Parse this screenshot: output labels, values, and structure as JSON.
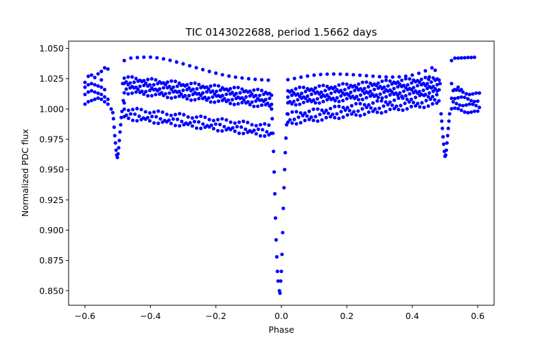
{
  "chart_data": {
    "type": "scatter",
    "title": "TIC 0143022688, period 1.5662 days",
    "xlabel": "Phase",
    "ylabel": "Normalized PDC flux",
    "xlim": [
      -0.65,
      0.65
    ],
    "ylim": [
      0.838,
      1.056
    ],
    "xticks": [
      -0.6,
      -0.4,
      -0.2,
      0.0,
      0.2,
      0.4,
      0.6
    ],
    "xtick_labels": [
      "−0.6",
      "−0.4",
      "−0.2",
      "0.0",
      "0.2",
      "0.4",
      "0.6"
    ],
    "yticks": [
      0.85,
      0.875,
      0.9,
      0.925,
      0.95,
      0.975,
      1.0,
      1.025,
      1.05
    ],
    "ytick_labels": [
      "0.850",
      "0.875",
      "0.900",
      "0.925",
      "0.950",
      "0.975",
      "1.000",
      "1.025",
      "1.050"
    ],
    "grid": false,
    "marker_color": "#0000ff",
    "series": [
      {
        "points": [
          [
            -0.6,
            1.004
          ],
          [
            -0.59,
            1.006
          ],
          [
            -0.58,
            1.007
          ],
          [
            -0.57,
            1.008
          ],
          [
            -0.56,
            1.009
          ],
          [
            -0.55,
            1.008
          ],
          [
            -0.54,
            1.006
          ],
          [
            -0.53,
            1.004
          ],
          [
            -0.52,
            1.0
          ],
          [
            -0.6,
            1.012
          ],
          [
            -0.59,
            1.014
          ],
          [
            -0.58,
            1.015
          ],
          [
            -0.57,
            1.014
          ],
          [
            -0.56,
            1.013
          ],
          [
            -0.55,
            1.012
          ],
          [
            -0.54,
            1.01
          ],
          [
            -0.53,
            1.008
          ],
          [
            -0.6,
            1.018
          ],
          [
            -0.59,
            1.02
          ],
          [
            -0.58,
            1.021
          ],
          [
            -0.57,
            1.02
          ],
          [
            -0.56,
            1.019
          ],
          [
            -0.55,
            1.018
          ],
          [
            -0.54,
            1.016
          ],
          [
            -0.6,
            1.022
          ],
          [
            -0.59,
            1.027
          ],
          [
            -0.58,
            1.028
          ],
          [
            -0.57,
            1.026
          ],
          [
            -0.56,
            1.029
          ],
          [
            -0.55,
            1.031
          ],
          [
            -0.54,
            1.034
          ],
          [
            -0.53,
            1.033
          ],
          [
            -0.55,
            1.024
          ],
          [
            -0.515,
            0.997
          ],
          [
            -0.513,
            0.992
          ],
          [
            -0.511,
            0.985
          ],
          [
            -0.509,
            0.978
          ],
          [
            -0.507,
            0.972
          ],
          [
            -0.505,
            0.966
          ],
          [
            -0.503,
            0.962
          ],
          [
            -0.501,
            0.96
          ],
          [
            -0.499,
            0.963
          ],
          [
            -0.497,
            0.968
          ],
          [
            -0.495,
            0.974
          ],
          [
            -0.493,
            0.981
          ],
          [
            -0.491,
            0.987
          ],
          [
            -0.489,
            0.993
          ],
          [
            -0.487,
            0.998
          ],
          [
            -0.483,
            1.007
          ],
          [
            -0.48,
            1.005
          ],
          [
            -0.485,
            1.021
          ],
          [
            -0.48,
            1.04
          ],
          [
            -0.46,
            1.042
          ],
          [
            -0.44,
            1.0425
          ],
          [
            -0.42,
            1.0428
          ],
          [
            -0.4,
            1.0428
          ],
          [
            -0.38,
            1.0423
          ],
          [
            -0.36,
            1.0414
          ],
          [
            -0.34,
            1.0402
          ],
          [
            -0.32,
            1.0388
          ],
          [
            -0.3,
            1.0373
          ],
          [
            -0.28,
            1.0357
          ],
          [
            -0.26,
            1.0341
          ],
          [
            -0.24,
            1.0325
          ],
          [
            -0.22,
            1.031
          ],
          [
            -0.2,
            1.0296
          ],
          [
            -0.18,
            1.0283
          ],
          [
            -0.16,
            1.0272
          ],
          [
            -0.14,
            1.0263
          ],
          [
            -0.12,
            1.0256
          ],
          [
            -0.1,
            1.025
          ],
          [
            -0.08,
            1.0245
          ],
          [
            -0.06,
            1.0241
          ],
          [
            -0.04,
            1.0238
          ],
          [
            -0.03,
            1.0
          ],
          [
            -0.028,
            0.992
          ],
          [
            -0.026,
            0.98
          ],
          [
            -0.024,
            0.965
          ],
          [
            -0.022,
            0.948
          ],
          [
            -0.02,
            0.93
          ],
          [
            -0.018,
            0.91
          ],
          [
            -0.016,
            0.892
          ],
          [
            -0.014,
            0.878
          ],
          [
            -0.012,
            0.866
          ],
          [
            -0.01,
            0.858
          ],
          [
            -0.006,
            0.85
          ],
          [
            -0.004,
            0.848
          ],
          [
            -0.002,
            0.858
          ],
          [
            0.0,
            0.866
          ],
          [
            0.002,
            0.88
          ],
          [
            0.004,
            0.898
          ],
          [
            0.006,
            0.918
          ],
          [
            0.008,
            0.935
          ],
          [
            0.01,
            0.95
          ],
          [
            0.012,
            0.964
          ],
          [
            0.014,
            0.976
          ],
          [
            0.016,
            0.987
          ],
          [
            0.018,
            0.996
          ],
          [
            0.02,
            1.0242
          ],
          [
            0.04,
            1.0252
          ],
          [
            0.06,
            1.0263
          ],
          [
            0.08,
            1.0272
          ],
          [
            0.1,
            1.028
          ],
          [
            0.12,
            1.0285
          ],
          [
            0.14,
            1.0288
          ],
          [
            0.16,
            1.0289
          ],
          [
            0.18,
            1.0288
          ],
          [
            0.2,
            1.0286
          ],
          [
            0.22,
            1.0283
          ],
          [
            0.24,
            1.0279
          ],
          [
            0.26,
            1.0275
          ],
          [
            0.28,
            1.0271
          ],
          [
            0.3,
            1.0267
          ],
          [
            0.32,
            1.0265
          ],
          [
            0.34,
            1.0264
          ],
          [
            0.36,
            1.0266
          ],
          [
            0.38,
            1.0271
          ],
          [
            0.4,
            1.028
          ],
          [
            0.42,
            1.0295
          ],
          [
            0.44,
            1.0315
          ],
          [
            0.46,
            1.034
          ],
          [
            0.47,
            1.032
          ],
          [
            0.45,
            1.0245
          ],
          [
            0.485,
            1.021
          ],
          [
            0.488,
            0.996
          ],
          [
            0.49,
            0.99
          ],
          [
            0.492,
            0.984
          ],
          [
            0.494,
            0.977
          ],
          [
            0.496,
            0.971
          ],
          [
            0.498,
            0.965
          ],
          [
            0.5,
            0.961
          ],
          [
            0.502,
            0.962
          ],
          [
            0.504,
            0.966
          ],
          [
            0.506,
            0.972
          ],
          [
            0.508,
            0.978
          ],
          [
            0.51,
            0.984
          ],
          [
            0.512,
            0.99
          ],
          [
            0.514,
            0.996
          ],
          [
            0.52,
            1.04
          ],
          [
            0.53,
            1.042
          ],
          [
            0.54,
            1.042
          ],
          [
            0.55,
            1.0422
          ],
          [
            0.56,
            1.0423
          ],
          [
            0.57,
            1.0425
          ],
          [
            0.58,
            1.0425
          ],
          [
            0.59,
            1.0427
          ],
          [
            0.52,
            1.021
          ],
          [
            0.53,
            1.016
          ],
          [
            0.54,
            1.018
          ],
          [
            0.55,
            1.016
          ]
        ]
      }
    ],
    "bands": [
      {
        "x_start": -0.48,
        "x_end": -0.035,
        "y0": 1.014,
        "y1": 1.002,
        "rows": [
          0.0,
          0.003,
          0.006,
          0.009,
          0.012
        ],
        "step": 0.012
      },
      {
        "x_start": -0.48,
        "x_end": -0.035,
        "y0": 1.0005,
        "y1": 0.986,
        "rows": [
          0.0,
          -0.005,
          -0.008
        ],
        "step": 0.013
      },
      {
        "x_start": 0.02,
        "x_end": 0.48,
        "y0": 1.004,
        "y1": 1.014,
        "rows": [
          0.0,
          0.003,
          0.006,
          0.009,
          0.012
        ],
        "step": 0.012
      },
      {
        "x_start": 0.02,
        "x_end": 0.48,
        "y0": 0.988,
        "y1": 1.004,
        "rows": [
          0.0,
          0.004,
          0.008
        ],
        "step": 0.013
      },
      {
        "x_start": 0.52,
        "x_end": 0.6,
        "y0": 1.0,
        "y1": 0.997,
        "rows": [
          0.0,
          0.005,
          0.01,
          0.015
        ],
        "step": 0.01
      }
    ]
  }
}
